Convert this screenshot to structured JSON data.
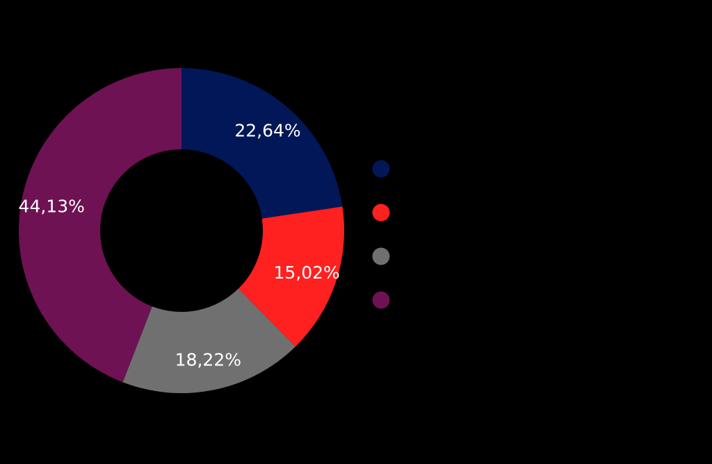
{
  "chart_data": {
    "type": "pie",
    "variant": "donut",
    "title": "",
    "values": [
      22.64,
      15.02,
      18.22,
      44.13
    ],
    "labels": [
      "22,64%",
      "15,02%",
      "18,22%",
      "44,13%"
    ],
    "colors": [
      "#021757",
      "#FF2020",
      "#707070",
      "#6E1253"
    ],
    "legend": {
      "placement": "right",
      "entries": [
        "",
        "",
        "",
        ""
      ]
    },
    "label_color": "#FFFFFF",
    "background": "#000000"
  }
}
